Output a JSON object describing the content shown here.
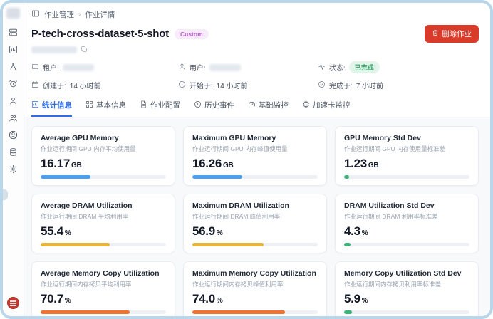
{
  "breadcrumb": {
    "section": "作业管理",
    "separator": "›",
    "current": "作业详情"
  },
  "header": {
    "title": "P-tech-cross-dataset-5-shot",
    "badge": "Custom",
    "delete_button": "删除作业"
  },
  "meta": {
    "tenant_label": "租户:",
    "user_label": "用户:",
    "status_label": "状态:",
    "status_value": "已完成",
    "created_label": "创建于:",
    "created_value": "14 小时前",
    "started_label": "开始于:",
    "started_value": "14 小时前",
    "completed_label": "完成于:",
    "completed_value": "7 小时前"
  },
  "tabs": [
    {
      "label": "统计信息",
      "icon": "bar-chart-icon",
      "active": true
    },
    {
      "label": "基本信息",
      "icon": "grid-icon",
      "active": false
    },
    {
      "label": "作业配置",
      "icon": "document-icon",
      "active": false
    },
    {
      "label": "历史事件",
      "icon": "history-icon",
      "active": false
    },
    {
      "label": "基础监控",
      "icon": "gauge-icon",
      "active": false
    },
    {
      "label": "加速卡监控",
      "icon": "chip-icon",
      "active": false
    }
  ],
  "colors": {
    "bar_blue": "#4aa0f2",
    "bar_amber": "#e8b33c",
    "bar_orange": "#ee7433",
    "bar_green": "#3cb179",
    "danger": "#d93b2b",
    "tab_active": "#2e6be6",
    "status_green": "#39a06b",
    "frame_border": "#b9d6ea"
  },
  "stats": {
    "cards": [
      {
        "title": "Average GPU Memory",
        "subtitle": "作业运行期间 GPU 内存平均使用量",
        "value": "16.17",
        "unit": "GB",
        "percent": 40,
        "color": "#4aa0f2"
      },
      {
        "title": "Maximum GPU Memory",
        "subtitle": "作业运行期间 GPU 内存峰值使用量",
        "value": "16.26",
        "unit": "GB",
        "percent": 40,
        "color": "#4aa0f2"
      },
      {
        "title": "GPU Memory Std Dev",
        "subtitle": "作业运行期间 GPU 内存使用量标准差",
        "value": "1.23",
        "unit": "GB",
        "percent": 4,
        "color": "#3cb179"
      },
      {
        "title": "Average DRAM Utilization",
        "subtitle": "作业运行期间 DRAM 平均利用率",
        "value": "55.4",
        "unit": "%",
        "percent": 55,
        "color": "#e8b33c"
      },
      {
        "title": "Maximum DRAM Utilization",
        "subtitle": "作业运行期间 DRAM 峰值利用率",
        "value": "56.9",
        "unit": "%",
        "percent": 57,
        "color": "#e8b33c"
      },
      {
        "title": "DRAM Utilization Std Dev",
        "subtitle": "作业运行期间 DRAM 利用率标准差",
        "value": "4.3",
        "unit": "%",
        "percent": 5,
        "color": "#3cb179"
      },
      {
        "title": "Average Memory Copy Utilization",
        "subtitle": "作业运行期间内存拷贝平均利用率",
        "value": "70.7",
        "unit": "%",
        "percent": 71,
        "color": "#ee7433"
      },
      {
        "title": "Maximum Memory Copy Utilization",
        "subtitle": "作业运行期间内存拷贝峰值利用率",
        "value": "74.0",
        "unit": "%",
        "percent": 74,
        "color": "#ee7433"
      },
      {
        "title": "Memory Copy Utilization Std Dev",
        "subtitle": "作业运行期间内存拷贝利用率标准差",
        "value": "5.9",
        "unit": "%",
        "percent": 6,
        "color": "#3cb179"
      }
    ]
  }
}
